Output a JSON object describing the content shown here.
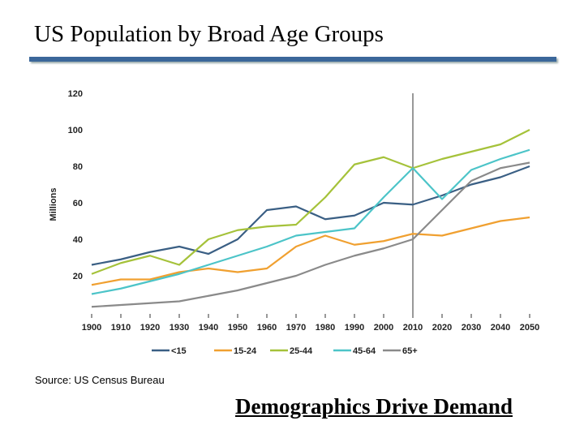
{
  "slide": {
    "title": "US Population by Broad Age Groups",
    "source": "Source: US Census Bureau",
    "tagline": "Demographics Drive Demand"
  },
  "chart_data": {
    "type": "line",
    "title": "",
    "xlabel": "",
    "ylabel": "Millions",
    "x": [
      1900,
      1910,
      1920,
      1930,
      1940,
      1950,
      1960,
      1970,
      1980,
      1990,
      2000,
      2010,
      2020,
      2030,
      2040,
      2050
    ],
    "x_tick_labels": [
      "1900",
      "1910",
      "1920",
      "1930",
      "1940",
      "1950",
      "1960",
      "1970",
      "1980",
      "1990",
      "2000",
      "2010",
      "2020",
      "2030",
      "2040",
      "2050"
    ],
    "y_tick_labels": [
      "20",
      "40",
      "60",
      "80",
      "100",
      "120"
    ],
    "y_ticks": [
      20,
      40,
      60,
      80,
      100,
      120
    ],
    "ylim": [
      0,
      120
    ],
    "grid": false,
    "reference_line_x": 2010,
    "legend_position": "bottom",
    "series": [
      {
        "name": "<15",
        "color": "#3a5f84",
        "values": [
          26,
          29,
          33,
          36,
          32,
          40,
          56,
          58,
          51,
          53,
          60,
          59,
          64,
          70,
          74,
          80
        ]
      },
      {
        "name": "15-24",
        "color": "#f0a030",
        "values": [
          15,
          18,
          18,
          22,
          24,
          22,
          24,
          36,
          42,
          37,
          39,
          43,
          42,
          46,
          50,
          52
        ]
      },
      {
        "name": "25-44",
        "color": "#a5c23a",
        "values": [
          21,
          27,
          31,
          26,
          40,
          45,
          47,
          48,
          63,
          81,
          85,
          79,
          84,
          88,
          92,
          100
        ]
      },
      {
        "name": "45-64",
        "color": "#4cc4c8",
        "values": [
          10,
          13,
          17,
          21,
          26,
          31,
          36,
          42,
          44,
          46,
          63,
          79,
          62,
          78,
          84,
          89
        ]
      },
      {
        "name": "65+",
        "color": "#8a8a8a",
        "values": [
          3,
          4,
          5,
          6,
          9,
          12,
          16,
          20,
          26,
          31,
          35,
          40,
          56,
          72,
          79,
          82
        ]
      }
    ]
  }
}
